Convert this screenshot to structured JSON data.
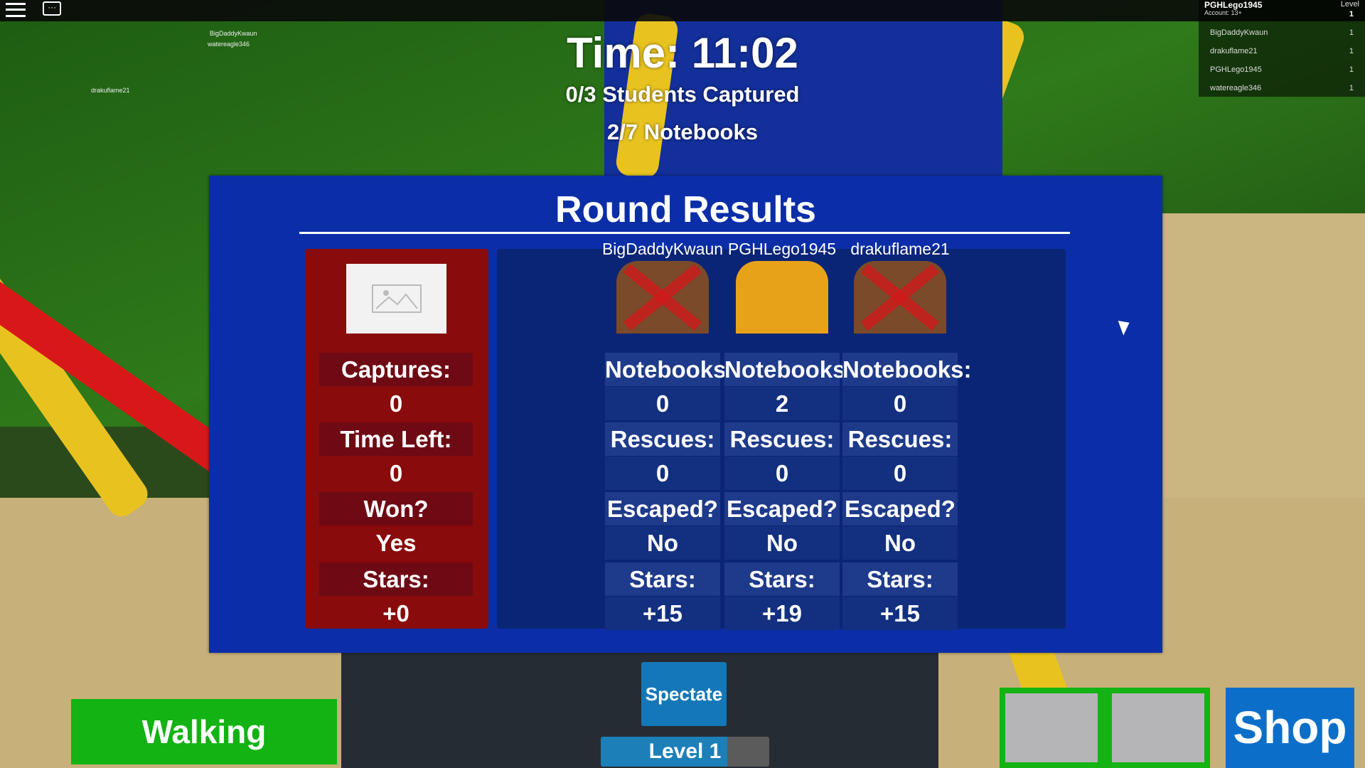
{
  "hud": {
    "time": "Time: 11:02",
    "students": "0/3 Students Captured",
    "notebooks": "2/7 Notebooks"
  },
  "topbar": {
    "menu_icon": "hamburger-menu-icon",
    "chat_icon": "chat-icon"
  },
  "leaderboard": {
    "player": "PGHLego1945",
    "account": "Account: 13+",
    "level_header": "Level",
    "player_level": "1",
    "rows": [
      {
        "name": "BigDaddyKwaun",
        "level": "1"
      },
      {
        "name": "drakuflame21",
        "level": "1"
      },
      {
        "name": "PGHLego1945",
        "level": "1"
      },
      {
        "name": "watereagle346",
        "level": "1"
      }
    ]
  },
  "world_names": [
    "BigDaddyKwaun",
    "watereagle346",
    "drakuflame21"
  ],
  "results": {
    "title": "Round Results",
    "teacher": {
      "labels": [
        "Captures:",
        "Time Left:",
        "Won?",
        "Stars:"
      ],
      "values": [
        "0",
        "0",
        "Yes",
        "+0"
      ]
    },
    "players": [
      {
        "name": "BigDaddyKwaun",
        "eliminated": true,
        "values": [
          "0",
          "0",
          "No",
          "+15"
        ]
      },
      {
        "name": "PGHLego1945",
        "eliminated": false,
        "values": [
          "2",
          "0",
          "No",
          "+19"
        ]
      },
      {
        "name": "drakuflame21",
        "eliminated": true,
        "values": [
          "0",
          "0",
          "No",
          "+15"
        ]
      }
    ],
    "player_labels": [
      "Notebooks:",
      "Rescues:",
      "Escaped?",
      "Stars:"
    ]
  },
  "buttons": {
    "walking": "Walking",
    "spectate": "Spectate",
    "shop": "Shop",
    "level": "Level 1",
    "level_progress": 0.75
  },
  "colors": {
    "panel": "#0b2ea8",
    "teacher_box": "#8a0b0b",
    "walking": "#12b312",
    "shop": "#0b6fc9"
  }
}
